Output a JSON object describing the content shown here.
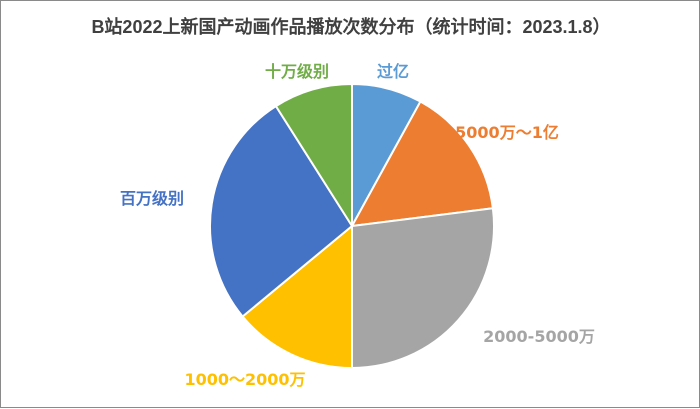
{
  "chart_data": {
    "type": "pie",
    "title": "B站2022上新国产动画作品播放次数分布（统计时间：2023.1.8）",
    "slices": [
      {
        "label": "过亿",
        "value": 8,
        "color": "#5b9bd5"
      },
      {
        "label": "5000万～1亿",
        "value": 15,
        "color": "#ed7d31"
      },
      {
        "label": "2000-5000万",
        "value": 27,
        "color": "#a5a5a5"
      },
      {
        "label": "1000～2000万",
        "value": 14,
        "color": "#ffc000"
      },
      {
        "label": "百万级别",
        "value": 27,
        "color": "#4472c4"
      },
      {
        "label": "十万级别",
        "value": 9,
        "color": "#70ad47"
      }
    ],
    "legend": "none"
  }
}
